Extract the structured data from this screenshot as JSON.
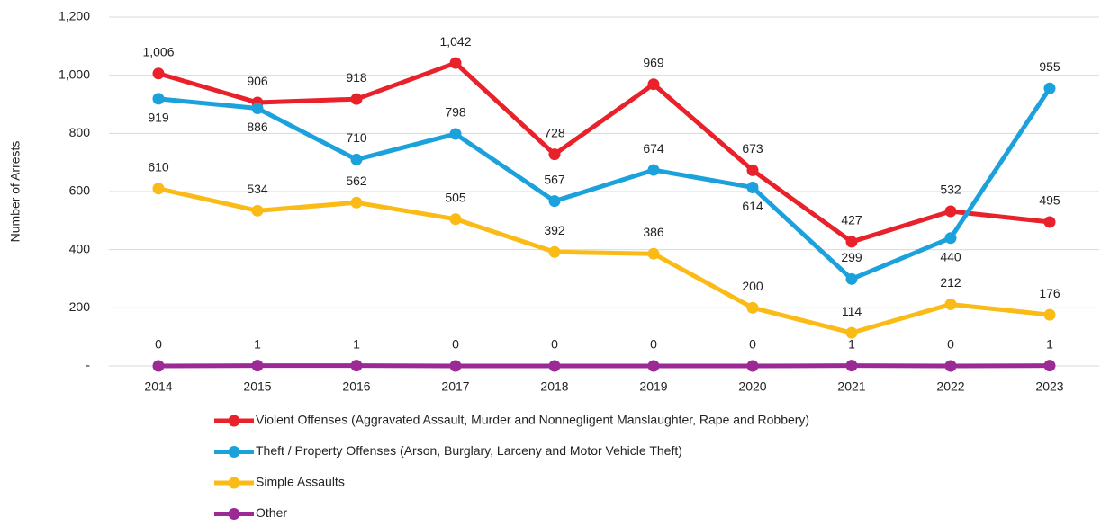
{
  "chart_data": {
    "type": "line",
    "y_label": "Number of Arrests",
    "categories": [
      "2014",
      "2015",
      "2016",
      "2017",
      "2018",
      "2019",
      "2020",
      "2021",
      "2022",
      "2023"
    ],
    "series": [
      {
        "name": "Violent Offenses (Aggravated Assault, Murder and Nonnegligent Manslaughter, Rape and Robbery)",
        "color": "#e8212a",
        "values": [
          1006,
          906,
          918,
          1042,
          728,
          969,
          673,
          427,
          532,
          495
        ],
        "value_labels": [
          "1,006",
          "906",
          "918",
          "1,042",
          "728",
          "969",
          "673",
          "427",
          "532",
          "495"
        ]
      },
      {
        "name": "Theft / Property Offenses (Arson, Burglary, Larceny and Motor Vehicle Theft)",
        "color": "#1ba1dc",
        "values": [
          919,
          886,
          710,
          798,
          567,
          674,
          614,
          299,
          440,
          955
        ]
      },
      {
        "name": "Simple Assaults",
        "color": "#fbbb16",
        "values": [
          610,
          534,
          562,
          505,
          392,
          386,
          200,
          114,
          212,
          176
        ]
      },
      {
        "name": "Other",
        "color": "#9c2a96",
        "values": [
          0,
          1,
          1,
          0,
          0,
          0,
          0,
          1,
          0,
          1
        ]
      }
    ],
    "ylim": [
      0,
      1200
    ],
    "yticks": [
      {
        "value": 0,
        "label": "-"
      },
      200,
      400,
      600,
      800,
      {
        "value": 1000,
        "label": "1,000"
      },
      {
        "value": 1200,
        "label": "1,200"
      }
    ],
    "grid": true,
    "legend": "bottom"
  }
}
